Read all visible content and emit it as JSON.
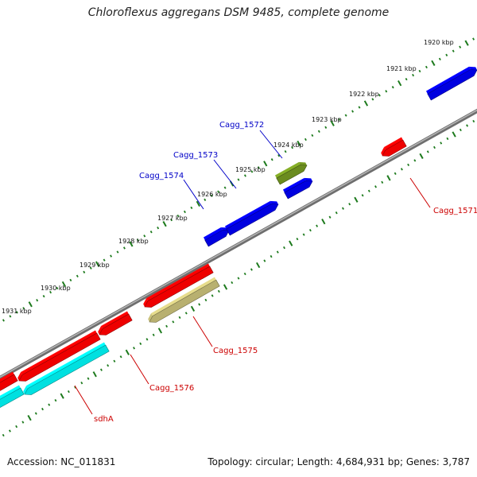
{
  "title": "Chloroflexus aggregans DSM 9485, complete genome",
  "footer": {
    "accession": "Accession: NC_011831",
    "summary": "Topology: circular; Length: 4,684,931 bp; Genes: 3,787"
  },
  "colors": {
    "backbone": "#8c8c8c",
    "ticks": "#1d7a1d",
    "label_top": "#0000c8",
    "label_bottom": "#cc0000"
  },
  "scale": {
    "kbp_labels": [
      "1920 kbp",
      "1921 kbp",
      "1922 kbp",
      "1923 kbp",
      "1924 kbp",
      "1925 kbp",
      "1926 kbp",
      "1927 kbp",
      "1928 kbp",
      "1929 kbp",
      "1930 kbp",
      "1931 kbp"
    ]
  },
  "features": [
    {
      "strand": "forward",
      "color": "#0000e0",
      "label": ""
    },
    {
      "strand": "reverse",
      "color": "#ee0000",
      "label": "Cagg_1571"
    },
    {
      "strand": "forward",
      "color": "#6b8c1f",
      "label": "Cagg_1572"
    },
    {
      "strand": "forward",
      "color": "#0000e0",
      "label": ""
    },
    {
      "strand": "forward",
      "color": "#0000e0",
      "label": "Cagg_1573"
    },
    {
      "strand": "forward",
      "color": "#0000e0",
      "label": "Cagg_1574"
    },
    {
      "strand": "reverse",
      "color": "#ee0000",
      "label": ""
    },
    {
      "strand": "reverse",
      "color": "#b8b070",
      "label": "Cagg_1575"
    },
    {
      "strand": "reverse",
      "color": "#ee0000",
      "label": "Cagg_1576"
    },
    {
      "strand": "reverse",
      "color": "#ee0000",
      "label": ""
    },
    {
      "strand": "reverse",
      "color": "#00e0e0",
      "label": "sdhA"
    },
    {
      "strand": "reverse",
      "color": "#ee0000",
      "label": ""
    },
    {
      "strand": "reverse",
      "color": "#00e0e0",
      "label": ""
    }
  ]
}
